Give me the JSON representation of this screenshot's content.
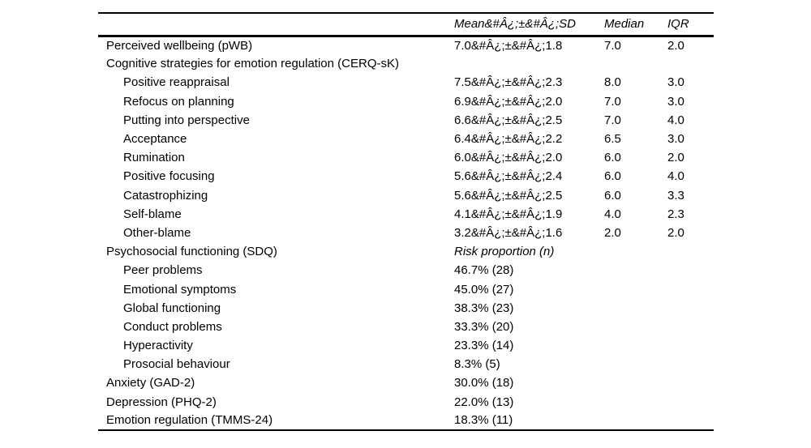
{
  "colors": {
    "background": "#ffffff",
    "text": "#000000",
    "rule": "#000000"
  },
  "table": {
    "columns": {
      "label": "",
      "mean_sd": "Mean&#Â¿;±&#Â¿;SD",
      "median": "Median",
      "iqr": "IQR"
    },
    "rows": [
      {
        "label": "Perceived wellbeing (pWB)",
        "indent": 0,
        "mean_sd": "7.0&#Â¿;±&#Â¿;1.8",
        "median": "7.0",
        "iqr": "2.0",
        "italic_value": false
      },
      {
        "label": "Cognitive strategies for emotion regulation (CERQ-sK)",
        "indent": 0,
        "mean_sd": "",
        "median": "",
        "iqr": "",
        "italic_value": false
      },
      {
        "label": "Positive reappraisal",
        "indent": 1,
        "mean_sd": "7.5&#Â¿;±&#Â¿;2.3",
        "median": "8.0",
        "iqr": "3.0",
        "italic_value": false
      },
      {
        "label": "Refocus on planning",
        "indent": 1,
        "mean_sd": "6.9&#Â¿;±&#Â¿;2.0",
        "median": "7.0",
        "iqr": "3.0",
        "italic_value": false
      },
      {
        "label": "Putting into perspective",
        "indent": 1,
        "mean_sd": "6.6&#Â¿;±&#Â¿;2.5",
        "median": "7.0",
        "iqr": "4.0",
        "italic_value": false
      },
      {
        "label": "Acceptance",
        "indent": 1,
        "mean_sd": "6.4&#Â¿;±&#Â¿;2.2",
        "median": "6.5",
        "iqr": "3.0",
        "italic_value": false
      },
      {
        "label": "Rumination",
        "indent": 1,
        "mean_sd": "6.0&#Â¿;±&#Â¿;2.0",
        "median": "6.0",
        "iqr": "2.0",
        "italic_value": false
      },
      {
        "label": "Positive focusing",
        "indent": 1,
        "mean_sd": "5.6&#Â¿;±&#Â¿;2.4",
        "median": "6.0",
        "iqr": "4.0",
        "italic_value": false
      },
      {
        "label": "Catastrophizing",
        "indent": 1,
        "mean_sd": "5.6&#Â¿;±&#Â¿;2.5",
        "median": "6.0",
        "iqr": "3.3",
        "italic_value": false
      },
      {
        "label": "Self-blame",
        "indent": 1,
        "mean_sd": "4.1&#Â¿;±&#Â¿;1.9",
        "median": "4.0",
        "iqr": "2.3",
        "italic_value": false
      },
      {
        "label": "Other-blame",
        "indent": 1,
        "mean_sd": "3.2&#Â¿;±&#Â¿;1.6",
        "median": "2.0",
        "iqr": "2.0",
        "italic_value": false
      },
      {
        "label": "Psychosocial functioning (SDQ)",
        "indent": 0,
        "mean_sd": "Risk proportion (n)",
        "median": "",
        "iqr": "",
        "italic_value": true
      },
      {
        "label": "Peer problems",
        "indent": 1,
        "mean_sd": "46.7% (28)",
        "median": "",
        "iqr": "",
        "italic_value": false
      },
      {
        "label": "Emotional symptoms",
        "indent": 1,
        "mean_sd": "45.0% (27)",
        "median": "",
        "iqr": "",
        "italic_value": false
      },
      {
        "label": "Global functioning",
        "indent": 1,
        "mean_sd": "38.3% (23)",
        "median": "",
        "iqr": "",
        "italic_value": false
      },
      {
        "label": "Conduct problems",
        "indent": 1,
        "mean_sd": "33.3% (20)",
        "median": "",
        "iqr": "",
        "italic_value": false
      },
      {
        "label": "Hyperactivity",
        "indent": 1,
        "mean_sd": "23.3% (14)",
        "median": "",
        "iqr": "",
        "italic_value": false
      },
      {
        "label": "Prosocial behaviour",
        "indent": 1,
        "mean_sd": "8.3% (5)",
        "median": "",
        "iqr": "",
        "italic_value": false
      },
      {
        "label": "Anxiety (GAD-2)",
        "indent": 0,
        "mean_sd": "30.0% (18)",
        "median": "",
        "iqr": "",
        "italic_value": false
      },
      {
        "label": "Depression (PHQ-2)",
        "indent": 0,
        "mean_sd": "22.0% (13)",
        "median": "",
        "iqr": "",
        "italic_value": false
      },
      {
        "label": "Emotion regulation (TMMS-24)",
        "indent": 0,
        "mean_sd": "18.3% (11)",
        "median": "",
        "iqr": "",
        "italic_value": false
      }
    ]
  }
}
